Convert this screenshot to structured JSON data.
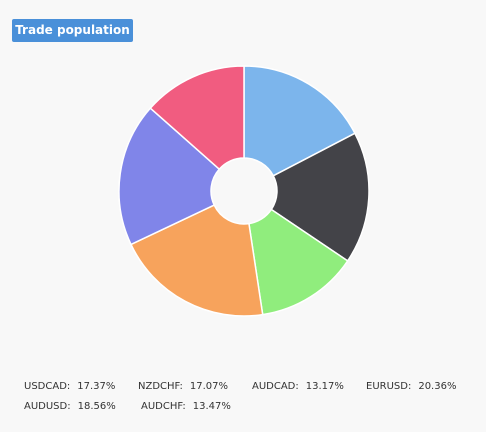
{
  "header": {
    "title_button": "Trade population"
  },
  "chart_data": {
    "type": "pie",
    "donut": true,
    "start_angle_deg": 0,
    "direction": "clockwise",
    "slices": [
      {
        "name": "USDCAD",
        "value": 17.37,
        "label": "17.37%",
        "color": "#7cb5ec"
      },
      {
        "name": "NZDCHF",
        "value": 17.07,
        "label": "17.07%",
        "color": "#434348"
      },
      {
        "name": "AUDCAD",
        "value": 13.17,
        "label": "13.17%",
        "color": "#90ed7d"
      },
      {
        "name": "EURUSD",
        "value": 20.36,
        "label": "20.36%",
        "color": "#f7a35c"
      },
      {
        "name": "AUDUSD",
        "value": 18.56,
        "label": "18.56%",
        "color": "#8085e9"
      },
      {
        "name": "AUDCHF",
        "value": 13.47,
        "label": "13.47%",
        "color": "#f15c80"
      }
    ]
  }
}
